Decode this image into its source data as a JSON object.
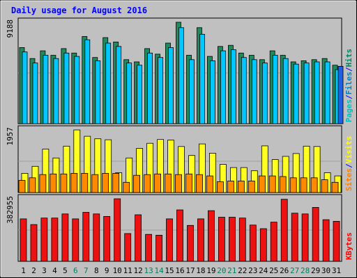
{
  "chart_data": {
    "type": "bar",
    "title": "Daily usage for August 2016",
    "categories": [
      "1",
      "2",
      "3",
      "4",
      "5",
      "6",
      "7",
      "8",
      "9",
      "10",
      "11",
      "12",
      "13",
      "14",
      "15",
      "16",
      "17",
      "18",
      "19",
      "20",
      "21",
      "22",
      "23",
      "24",
      "25",
      "26",
      "27",
      "28",
      "29",
      "30",
      "31"
    ],
    "weekend_days": [
      "6",
      "7",
      "13",
      "14",
      "20",
      "21",
      "27",
      "28"
    ],
    "panels": [
      {
        "name": "hits-files-pages",
        "max_label": "9188",
        "legend": [
          {
            "label": "Pages",
            "color": "#00c0c0"
          },
          {
            "label": "/",
            "color": "#0000ff"
          },
          {
            "label": "Files",
            "color": "#0080c0"
          },
          {
            "label": "/",
            "color": "#0000ff"
          },
          {
            "label": "Hits",
            "color": "#008060"
          }
        ],
        "ymax": 9188,
        "series": [
          {
            "name": "Hits",
            "color": "#1f8a5e",
            "values": [
              6900,
              5900,
              6600,
              6200,
              6800,
              6400,
              7900,
              6000,
              7800,
              7400,
              5800,
              5600,
              6800,
              6300,
              7300,
              9188,
              6200,
              8700,
              6100,
              7000,
              7100,
              6400,
              6200,
              5800,
              6600,
              6200,
              5600,
              5700,
              5800,
              5900,
              5300
            ]
          },
          {
            "name": "Files",
            "color": "#00c8ff",
            "values": [
              6500,
              5500,
              6200,
              5900,
              6400,
              6100,
              7600,
              5700,
              7300,
              7000,
              5500,
              5300,
              6400,
              6000,
              6900,
              8700,
              5800,
              8100,
              5700,
              6600,
              6700,
              6000,
              5800,
              5500,
              6200,
              5900,
              5400,
              5500,
              5600,
              5600,
              4900
            ]
          },
          {
            "name": "Pages",
            "color": "#2060e0",
            "values": [
              0,
              0,
              0,
              0,
              0,
              0,
              0,
              0,
              0,
              0,
              0,
              0,
              0,
              0,
              0,
              0,
              0,
              0,
              0,
              0,
              0,
              0,
              0,
              0,
              0,
              0,
              0,
              0,
              0,
              0,
              5200
            ]
          }
        ]
      },
      {
        "name": "visits-sites",
        "max_label": "1957",
        "legend": [
          {
            "label": "Sites",
            "color": "#ff8000"
          },
          {
            "label": "/",
            "color": "#0000ff"
          },
          {
            "label": "Visits",
            "color": "#ffff00"
          }
        ],
        "ymax": 1957,
        "series": [
          {
            "name": "Visits",
            "color": "#ffff22",
            "values": [
              600,
              820,
              1360,
              1080,
              1450,
              1957,
              1760,
              1680,
              1650,
              620,
              1080,
              1380,
              1540,
              1660,
              1640,
              1440,
              1160,
              1520,
              1230,
              880,
              780,
              780,
              680,
              1460,
              1030,
              1130,
              1220,
              1450,
              1440,
              620,
              520
            ]
          },
          {
            "name": "Sites",
            "color": "#ff8a00",
            "values": [
              380,
              460,
              560,
              580,
              580,
              600,
              600,
              560,
              600,
              600,
              320,
              540,
              560,
              580,
              580,
              560,
              580,
              560,
              520,
              340,
              360,
              360,
              360,
              520,
              520,
              500,
              460,
              460,
              460,
              400,
              320
            ]
          }
        ]
      },
      {
        "name": "kbytes",
        "max_label": "382955",
        "legend": [
          {
            "label": "KBytes",
            "color": "#ff0000"
          }
        ],
        "ymax": 382955,
        "series": [
          {
            "name": "KBytes",
            "color": "#ee1111",
            "values": [
              260000,
              225000,
              265000,
              265000,
              290000,
              260000,
              300000,
              290000,
              275000,
              382955,
              170000,
              285000,
              165000,
              160000,
              260000,
              315000,
              220000,
              260000,
              310000,
              270000,
              270000,
              265000,
              222000,
              200000,
              240000,
              380000,
              295000,
              290000,
              330000,
              255000,
              245000
            ]
          }
        ]
      }
    ]
  }
}
